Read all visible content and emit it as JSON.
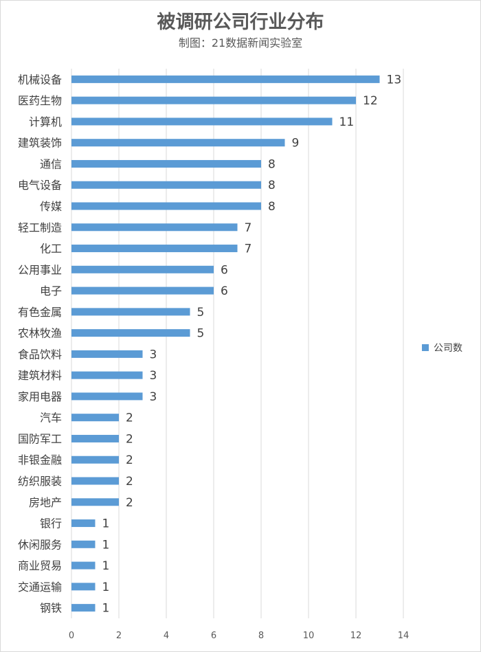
{
  "chart_data": {
    "type": "bar",
    "orientation": "horizontal",
    "title": "被调研公司行业分布",
    "subtitle": "制图：21数据新闻实验室",
    "categories": [
      "机械设备",
      "医药生物",
      "计算机",
      "建筑装饰",
      "通信",
      "电气设备",
      "传媒",
      "轻工制造",
      "化工",
      "公用事业",
      "电子",
      "有色金属",
      "农林牧渔",
      "食品饮料",
      "建筑材料",
      "家用电器",
      "汽车",
      "国防军工",
      "非银金融",
      "纺织服装",
      "房地产",
      "银行",
      "休闲服务",
      "商业贸易",
      "交通运输",
      "钢铁"
    ],
    "series": [
      {
        "name": "公司数",
        "values": [
          13,
          12,
          11,
          9,
          8,
          8,
          8,
          7,
          7,
          6,
          6,
          5,
          5,
          3,
          3,
          3,
          2,
          2,
          2,
          2,
          2,
          1,
          1,
          1,
          1,
          1
        ]
      }
    ],
    "xlim": [
      0,
      14
    ],
    "xticks": [
      "0",
      "2",
      "4",
      "6",
      "8",
      "10",
      "12",
      "14"
    ],
    "grid": "vertical",
    "legend_position": "right",
    "bar_color": "#5b9bd5"
  }
}
